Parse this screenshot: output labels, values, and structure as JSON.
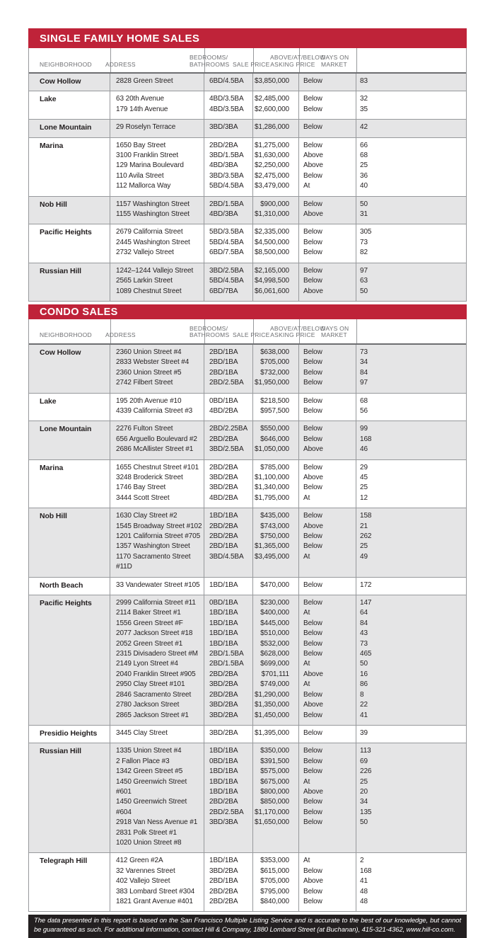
{
  "colors": {
    "accent_red": "#bf2339",
    "stripe_gray": "#e5e5e6",
    "footer_black": "#231f20",
    "border_gray": "#97999c",
    "header_text_gray": "#6d6e71",
    "body_text": "#231f20"
  },
  "columns": {
    "neighborhood": "NEIGHBORHOOD",
    "address": "ADDRESS",
    "bedrooms_line1": "BEDROOMS/",
    "bedrooms_line2": "BATHROOMS",
    "sale_price": "SALE PRICE",
    "asking_line1": "ABOVE/AT/BELOW",
    "asking_line2": "ASKING PRICE",
    "days_line1": "DAYS ON",
    "days_line2": "MARKET"
  },
  "sections": [
    {
      "title": "SINGLE FAMILY HOME SALES",
      "groups": [
        {
          "neighborhood": "Cow Hollow",
          "rows": [
            {
              "address": "2828 Green Street",
              "beds_baths": "6BD/4.5BA",
              "sale_price": "$3,850,000",
              "vs_asking": "Below",
              "days": "83"
            }
          ]
        },
        {
          "neighborhood": "Lake",
          "rows": [
            {
              "address": "63 20th Avenue",
              "beds_baths": "4BD/3.5BA",
              "sale_price": "$2,485,000",
              "vs_asking": "Below",
              "days": "32"
            },
            {
              "address": "179 14th Avenue",
              "beds_baths": "4BD/3.5BA",
              "sale_price": "$2,600,000",
              "vs_asking": "Below",
              "days": "35"
            }
          ]
        },
        {
          "neighborhood": "Lone Mountain",
          "rows": [
            {
              "address": "29 Roselyn Terrace",
              "beds_baths": "3BD/3BA",
              "sale_price": "$1,286,000",
              "vs_asking": "Below",
              "days": "42"
            }
          ]
        },
        {
          "neighborhood": "Marina",
          "rows": [
            {
              "address": "1650 Bay Street",
              "beds_baths": "2BD/2BA",
              "sale_price": "$1,275,000",
              "vs_asking": "Below",
              "days": "66"
            },
            {
              "address": "3100 Franklin Street",
              "beds_baths": "3BD/1.5BA",
              "sale_price": "$1,630,000",
              "vs_asking": "Above",
              "days": "68"
            },
            {
              "address": "129 Marina Boulevard",
              "beds_baths": "4BD/3BA",
              "sale_price": "$2,250,000",
              "vs_asking": "Above",
              "days": "25"
            },
            {
              "address": "110 Avila Street",
              "beds_baths": "3BD/3.5BA",
              "sale_price": "$2,475,000",
              "vs_asking": "Below",
              "days": "36"
            },
            {
              "address": "112 Mallorca Way",
              "beds_baths": "5BD/4.5BA",
              "sale_price": "$3,479,000",
              "vs_asking": "At",
              "days": "40"
            }
          ]
        },
        {
          "neighborhood": "Nob Hill",
          "rows": [
            {
              "address": "1157 Washington Street",
              "beds_baths": "2BD/1.5BA",
              "sale_price": "$900,000",
              "vs_asking": "Below",
              "days": "50"
            },
            {
              "address": "1155 Washington Street",
              "beds_baths": "4BD/3BA",
              "sale_price": "$1,310,000",
              "vs_asking": "Above",
              "days": "31"
            }
          ]
        },
        {
          "neighborhood": "Pacific Heights",
          "rows": [
            {
              "address": "2679 California Street",
              "beds_baths": "5BD/3.5BA",
              "sale_price": "$2,335,000",
              "vs_asking": "Below",
              "days": "305"
            },
            {
              "address": "2445 Washington Street",
              "beds_baths": "5BD/4.5BA",
              "sale_price": "$4,500,000",
              "vs_asking": "Below",
              "days": "73"
            },
            {
              "address": "2732 Vallejo Street",
              "beds_baths": "6BD/7.5BA",
              "sale_price": "$8,500,000",
              "vs_asking": "Below",
              "days": "82"
            }
          ]
        },
        {
          "neighborhood": "Russian Hill",
          "rows": [
            {
              "address": "1242–1244 Vallejo Street",
              "beds_baths": "3BD/2.5BA",
              "sale_price": "$2,165,000",
              "vs_asking": "Below",
              "days": "97"
            },
            {
              "address": "2565 Larkin Street",
              "beds_baths": "5BD/4.5BA",
              "sale_price": "$4,998,500",
              "vs_asking": "Below",
              "days": "63"
            },
            {
              "address": "1089 Chestnut Street",
              "beds_baths": "6BD/7BA",
              "sale_price": "$6,061,600",
              "vs_asking": "Above",
              "days": "50"
            }
          ]
        }
      ]
    },
    {
      "title": "CONDO SALES",
      "groups": [
        {
          "neighborhood": "Cow Hollow",
          "rows": [
            {
              "address": "2360 Union Street #4",
              "beds_baths": "2BD/1BA",
              "sale_price": "$638,000",
              "vs_asking": "Below",
              "days": "73"
            },
            {
              "address": "2833 Webster Street #4",
              "beds_baths": "2BD/1BA",
              "sale_price": "$705,000",
              "vs_asking": "Below",
              "days": "34"
            },
            {
              "address": "2360 Union Street #5",
              "beds_baths": "2BD/1BA",
              "sale_price": "$732,000",
              "vs_asking": "Below",
              "days": "84"
            },
            {
              "address": "2742 Filbert Street",
              "beds_baths": "2BD/2.5BA",
              "sale_price": "$1,950,000",
              "vs_asking": "Below",
              "days": "97"
            }
          ]
        },
        {
          "neighborhood": "Lake",
          "rows": [
            {
              "address": "195 20th Avenue #10",
              "beds_baths": "0BD/1BA",
              "sale_price": "$218,500",
              "vs_asking": "Below",
              "days": "68"
            },
            {
              "address": "4339 California Street #3",
              "beds_baths": "4BD/2BA",
              "sale_price": "$957,500",
              "vs_asking": "Below",
              "days": "56"
            }
          ]
        },
        {
          "neighborhood": "Lone Mountain",
          "rows": [
            {
              "address": "2276 Fulton Street",
              "beds_baths": "2BD/2.25BA",
              "sale_price": "$550,000",
              "vs_asking": "Below",
              "days": "99"
            },
            {
              "address": "656 Arguello Boulevard #2",
              "beds_baths": "2BD/2BA",
              "sale_price": "$646,000",
              "vs_asking": "Below",
              "days": "168"
            },
            {
              "address": "2686 McAllister Street #1",
              "beds_baths": "3BD/2.5BA",
              "sale_price": "$1,050,000",
              "vs_asking": "Above",
              "days": "46"
            }
          ]
        },
        {
          "neighborhood": "Marina",
          "rows": [
            {
              "address": "1655 Chestnut Street #101",
              "beds_baths": "2BD/2BA",
              "sale_price": "$785,000",
              "vs_asking": "Below",
              "days": "29"
            },
            {
              "address": "3248 Broderick Street",
              "beds_baths": "3BD/2BA",
              "sale_price": "$1,100,000",
              "vs_asking": "Above",
              "days": "45"
            },
            {
              "address": "1746 Bay Street",
              "beds_baths": "3BD/2BA",
              "sale_price": "$1,340,000",
              "vs_asking": "Below",
              "days": "25"
            },
            {
              "address": "3444 Scott Street",
              "beds_baths": "4BD/2BA",
              "sale_price": "$1,795,000",
              "vs_asking": "At",
              "days": "12"
            }
          ]
        },
        {
          "neighborhood": "Nob Hill",
          "rows": [
            {
              "address": "1630 Clay Street #2",
              "beds_baths": "1BD/1BA",
              "sale_price": "$435,000",
              "vs_asking": "Below",
              "days": "158"
            },
            {
              "address": "1545 Broadway Street #102",
              "beds_baths": "2BD/2BA",
              "sale_price": "$743,000",
              "vs_asking": "Above",
              "days": "21"
            },
            {
              "address": "1201 California Street #705",
              "beds_baths": "2BD/2BA",
              "sale_price": "$750,000",
              "vs_asking": "Below",
              "days": "262"
            },
            {
              "address": "1357 Washington Street",
              "beds_baths": "2BD/1BA",
              "sale_price": "$1,365,000",
              "vs_asking": "Below",
              "days": "25"
            },
            {
              "address": "1170 Sacramento Street #11D",
              "beds_baths": "3BD/4.5BA",
              "sale_price": "$3,495,000",
              "vs_asking": "At",
              "days": "49"
            }
          ]
        },
        {
          "neighborhood": "North Beach",
          "rows": [
            {
              "address": "33 Vandewater Street #105",
              "beds_baths": "1BD/1BA",
              "sale_price": "$470,000",
              "vs_asking": "Below",
              "days": "172"
            }
          ]
        },
        {
          "neighborhood": "Pacific Heights",
          "rows": [
            {
              "address": "2999 California Street #11",
              "beds_baths": "0BD/1BA",
              "sale_price": "$230,000",
              "vs_asking": "Below",
              "days": "147"
            },
            {
              "address": "2114 Baker Street #1",
              "beds_baths": "1BD/1BA",
              "sale_price": "$400,000",
              "vs_asking": "At",
              "days": "64"
            },
            {
              "address": "1556 Green Street #F",
              "beds_baths": "1BD/1BA",
              "sale_price": "$445,000",
              "vs_asking": "Below",
              "days": "84"
            },
            {
              "address": "2077 Jackson Street #18",
              "beds_baths": "1BD/1BA",
              "sale_price": "$510,000",
              "vs_asking": "Below",
              "days": "43"
            },
            {
              "address": "2052 Green Street #1",
              "beds_baths": "1BD/1BA",
              "sale_price": "$532,000",
              "vs_asking": "Below",
              "days": "73"
            },
            {
              "address": "2315 Divisadero Street #M",
              "beds_baths": "2BD/1.5BA",
              "sale_price": "$628,000",
              "vs_asking": "Below",
              "days": "465"
            },
            {
              "address": "2149 Lyon Street #4",
              "beds_baths": "2BD/1.5BA",
              "sale_price": "$699,000",
              "vs_asking": "At",
              "days": "50"
            },
            {
              "address": "2040 Franklin Street #905",
              "beds_baths": "2BD/2BA",
              "sale_price": "$701,111",
              "vs_asking": "Above",
              "days": "16"
            },
            {
              "address": "2950 Clay Street #101",
              "beds_baths": "3BD/2BA",
              "sale_price": "$749,000",
              "vs_asking": "At",
              "days": "86"
            },
            {
              "address": "2846 Sacramento Street",
              "beds_baths": "2BD/2BA",
              "sale_price": "$1,290,000",
              "vs_asking": "Below",
              "days": "8"
            },
            {
              "address": "2780 Jackson Street",
              "beds_baths": "3BD/2BA",
              "sale_price": "$1,350,000",
              "vs_asking": "Above",
              "days": "22"
            },
            {
              "address": "2865 Jackson Street #1",
              "beds_baths": "3BD/2BA",
              "sale_price": "$1,450,000",
              "vs_asking": "Below",
              "days": "41"
            }
          ]
        },
        {
          "neighborhood": "Presidio Heights",
          "rows": [
            {
              "address": "3445 Clay Street",
              "beds_baths": "3BD/2BA",
              "sale_price": "$1,395,000",
              "vs_asking": "Below",
              "days": "39"
            }
          ]
        },
        {
          "neighborhood": "Russian Hill",
          "rows": [
            {
              "address": "1335 Union Street #4",
              "beds_baths": "1BD/1BA",
              "sale_price": "$350,000",
              "vs_asking": "Below",
              "days": "113"
            },
            {
              "address": "2 Fallon Place #3",
              "beds_baths": "0BD/1BA",
              "sale_price": "$391,500",
              "vs_asking": "Below",
              "days": "69"
            },
            {
              "address": "1342 Green Street #5",
              "beds_baths": "1BD/1BA",
              "sale_price": "$575,000",
              "vs_asking": "Below",
              "days": "226"
            },
            {
              "address": "1450 Greenwich Street #601",
              "beds_baths": "1BD/1BA",
              "sale_price": "$675,000",
              "vs_asking": "At",
              "days": "25"
            },
            {
              "address": "1450 Greenwich Street #604",
              "beds_baths": "1BD/1BA",
              "sale_price": "$800,000",
              "vs_asking": "Above",
              "days": "20"
            },
            {
              "address": "2918 Van Ness Avenue #1",
              "beds_baths": "2BD/2BA",
              "sale_price": "$850,000",
              "vs_asking": "Below",
              "days": "34"
            },
            {
              "address": "2831 Polk Street #1",
              "beds_baths": "2BD/2.5BA",
              "sale_price": "$1,170,000",
              "vs_asking": "Below",
              "days": "135"
            },
            {
              "address": "1020 Union Street #8",
              "beds_baths": "3BD/3BA",
              "sale_price": "$1,650,000",
              "vs_asking": "Below",
              "days": "50"
            }
          ]
        },
        {
          "neighborhood": "Telegraph Hill",
          "rows": [
            {
              "address": "412 Green #2A",
              "beds_baths": "1BD/1BA",
              "sale_price": "$353,000",
              "vs_asking": "At",
              "days": "2"
            },
            {
              "address": "32 Varennes Street",
              "beds_baths": "3BD/2BA",
              "sale_price": "$615,000",
              "vs_asking": "Below",
              "days": "168"
            },
            {
              "address": "402 Vallejo Street",
              "beds_baths": "2BD/1BA",
              "sale_price": "$705,000",
              "vs_asking": "Above",
              "days": "41"
            },
            {
              "address": "383 Lombard Street #304",
              "beds_baths": "2BD/2BA",
              "sale_price": "$795,000",
              "vs_asking": "Below",
              "days": "48"
            },
            {
              "address": "1821 Grant Avenue #401",
              "beds_baths": "2BD/2BA",
              "sale_price": "$840,000",
              "vs_asking": "Below",
              "days": "48"
            }
          ]
        }
      ]
    }
  ],
  "footer": {
    "disclaimer": "The data presented in this report is based on the San Francisco Multiple Listing Service and is accurate to the best of our knowledge, but cannot be guaranteed as such. For additional information, contact Hill & Company, 1880 Lombard Street (at Buchanan), 415-321-4362, www.hill-co.com."
  }
}
